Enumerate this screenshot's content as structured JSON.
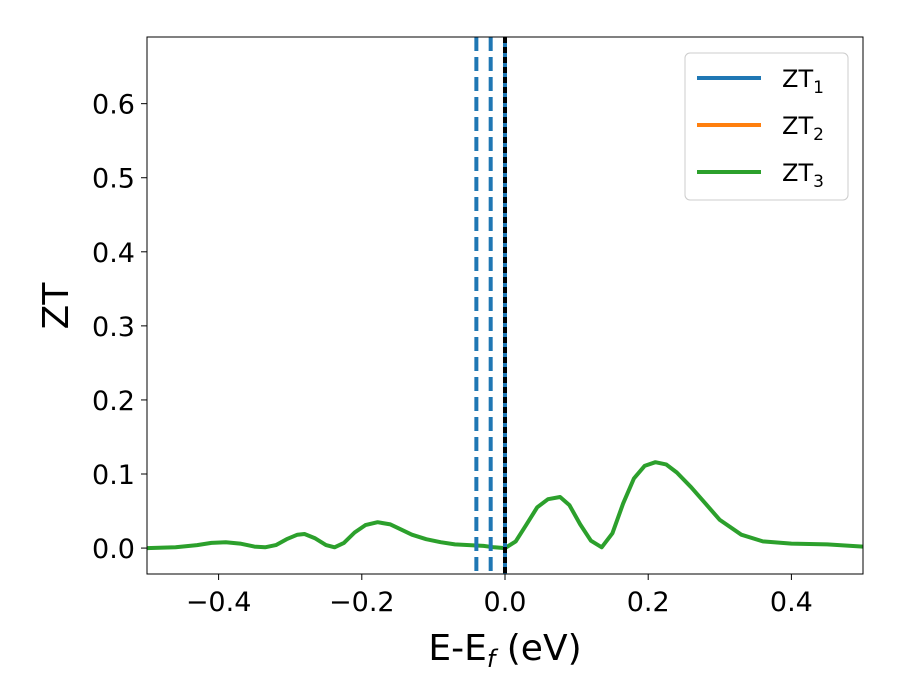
{
  "chart_data": {
    "type": "line",
    "title": "",
    "xlabel": {
      "main": "E-E",
      "sub": "f",
      "suffix": " (eV)"
    },
    "ylabel": "ZT",
    "xlim": [
      -0.5,
      0.5
    ],
    "ylim": [
      -0.035,
      0.69
    ],
    "xticks": [
      -0.4,
      -0.2,
      0.0,
      0.2,
      0.4
    ],
    "xtick_labels": [
      "−0.4",
      "−0.2",
      "0.0",
      "0.2",
      "0.4"
    ],
    "yticks": [
      0.0,
      0.1,
      0.2,
      0.3,
      0.4,
      0.5,
      0.6
    ],
    "ytick_labels": [
      "0.0",
      "0.1",
      "0.2",
      "0.3",
      "0.4",
      "0.5",
      "0.6"
    ],
    "grid": false,
    "legend": {
      "position": "top-right",
      "entries": [
        {
          "main": "ZT",
          "sub": "1",
          "color": "#1f77b4"
        },
        {
          "main": "ZT",
          "sub": "2",
          "color": "#ff7f0e"
        },
        {
          "main": "ZT",
          "sub": "3",
          "color": "#2ca02c"
        }
      ]
    },
    "series": [
      {
        "color": "#2ca02c",
        "x": [
          -0.5,
          -0.46,
          -0.43,
          -0.41,
          -0.39,
          -0.37,
          -0.35,
          -0.335,
          -0.32,
          -0.305,
          -0.29,
          -0.28,
          -0.265,
          -0.25,
          -0.238,
          -0.225,
          -0.21,
          -0.195,
          -0.178,
          -0.16,
          -0.145,
          -0.13,
          -0.11,
          -0.09,
          -0.07,
          -0.05,
          -0.03,
          -0.015,
          0.0,
          0.015,
          0.03,
          0.045,
          0.06,
          0.077,
          0.09,
          0.105,
          0.12,
          0.135,
          0.15,
          0.165,
          0.18,
          0.195,
          0.21,
          0.225,
          0.24,
          0.26,
          0.28,
          0.3,
          0.33,
          0.36,
          0.4,
          0.45,
          0.5
        ],
        "y": [
          0.0,
          0.001,
          0.004,
          0.007,
          0.008,
          0.006,
          0.002,
          0.001,
          0.004,
          0.012,
          0.018,
          0.019,
          0.013,
          0.004,
          0.001,
          0.007,
          0.021,
          0.031,
          0.035,
          0.032,
          0.025,
          0.018,
          0.012,
          0.008,
          0.005,
          0.004,
          0.003,
          0.001,
          0.0,
          0.009,
          0.032,
          0.055,
          0.066,
          0.069,
          0.058,
          0.032,
          0.01,
          0.001,
          0.02,
          0.06,
          0.094,
          0.111,
          0.116,
          0.113,
          0.102,
          0.082,
          0.06,
          0.038,
          0.018,
          0.009,
          0.006,
          0.005,
          0.002
        ]
      }
    ],
    "vlines": [
      {
        "x": -0.04,
        "color": "#1f77b4",
        "style": "dashed"
      },
      {
        "x": -0.02,
        "color": "#1f77b4",
        "style": "dashed"
      },
      {
        "x": 0.0,
        "color": "#1f77b4",
        "style": "solid"
      },
      {
        "x": 0.0,
        "color": "#000000",
        "style": "dotted"
      }
    ]
  }
}
